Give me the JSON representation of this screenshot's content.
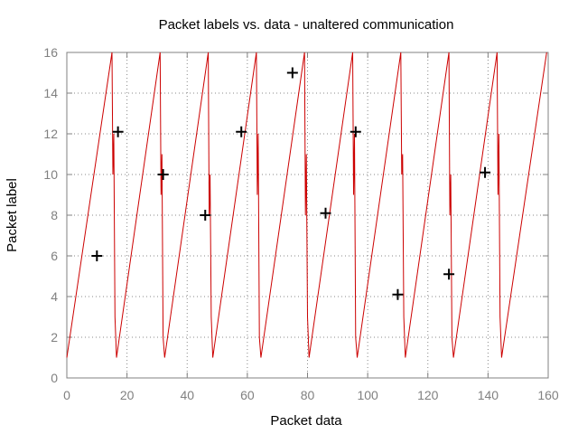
{
  "chart_data": {
    "type": "line",
    "title": "Packet labels vs. data - unaltered communication",
    "xlabel": "Packet data",
    "ylabel": "Packet label",
    "xlim": [
      0,
      160
    ],
    "ylim": [
      0,
      16
    ],
    "xticks": [
      0,
      20,
      40,
      60,
      80,
      100,
      120,
      140,
      160
    ],
    "yticks": [
      0,
      2,
      4,
      6,
      8,
      10,
      12,
      14,
      16
    ],
    "grid": true,
    "legend": "none",
    "colors": {
      "line": "#cc0000",
      "marker": "#000000"
    },
    "series": [
      {
        "kind": "line",
        "x": [
          0,
          15,
          15.3,
          15.6,
          16,
          16.5,
          31,
          31.3,
          31.6,
          32,
          32.5,
          47,
          47.3,
          47.6,
          48,
          48.5,
          63,
          63.3,
          63.6,
          64,
          64.5,
          79,
          79.3,
          79.6,
          80,
          80.5,
          95,
          95.3,
          95.6,
          96,
          96.5,
          111,
          111.3,
          111.6,
          112,
          112.5,
          127,
          127.3,
          127.6,
          128,
          128.5,
          143,
          143.3,
          143.6,
          144,
          144.5,
          159.5
        ],
        "y": [
          1,
          16,
          10,
          12,
          3,
          1,
          16,
          9,
          11,
          2,
          1,
          16,
          8,
          10,
          3,
          1,
          16,
          9,
          12,
          2,
          1,
          16,
          8,
          11,
          3,
          1,
          16,
          9,
          12,
          2,
          1,
          16,
          10,
          11,
          3,
          1,
          16,
          8,
          10,
          2,
          1,
          16,
          9,
          12,
          3,
          1,
          16
        ]
      },
      {
        "kind": "scatter",
        "marker": "plus",
        "x": [
          10,
          17,
          32,
          46,
          58,
          75,
          86,
          96,
          110,
          127,
          139
        ],
        "y": [
          6,
          12.1,
          10,
          8,
          12.1,
          15,
          8.1,
          12.1,
          4.1,
          5.1,
          10.1
        ]
      }
    ]
  }
}
